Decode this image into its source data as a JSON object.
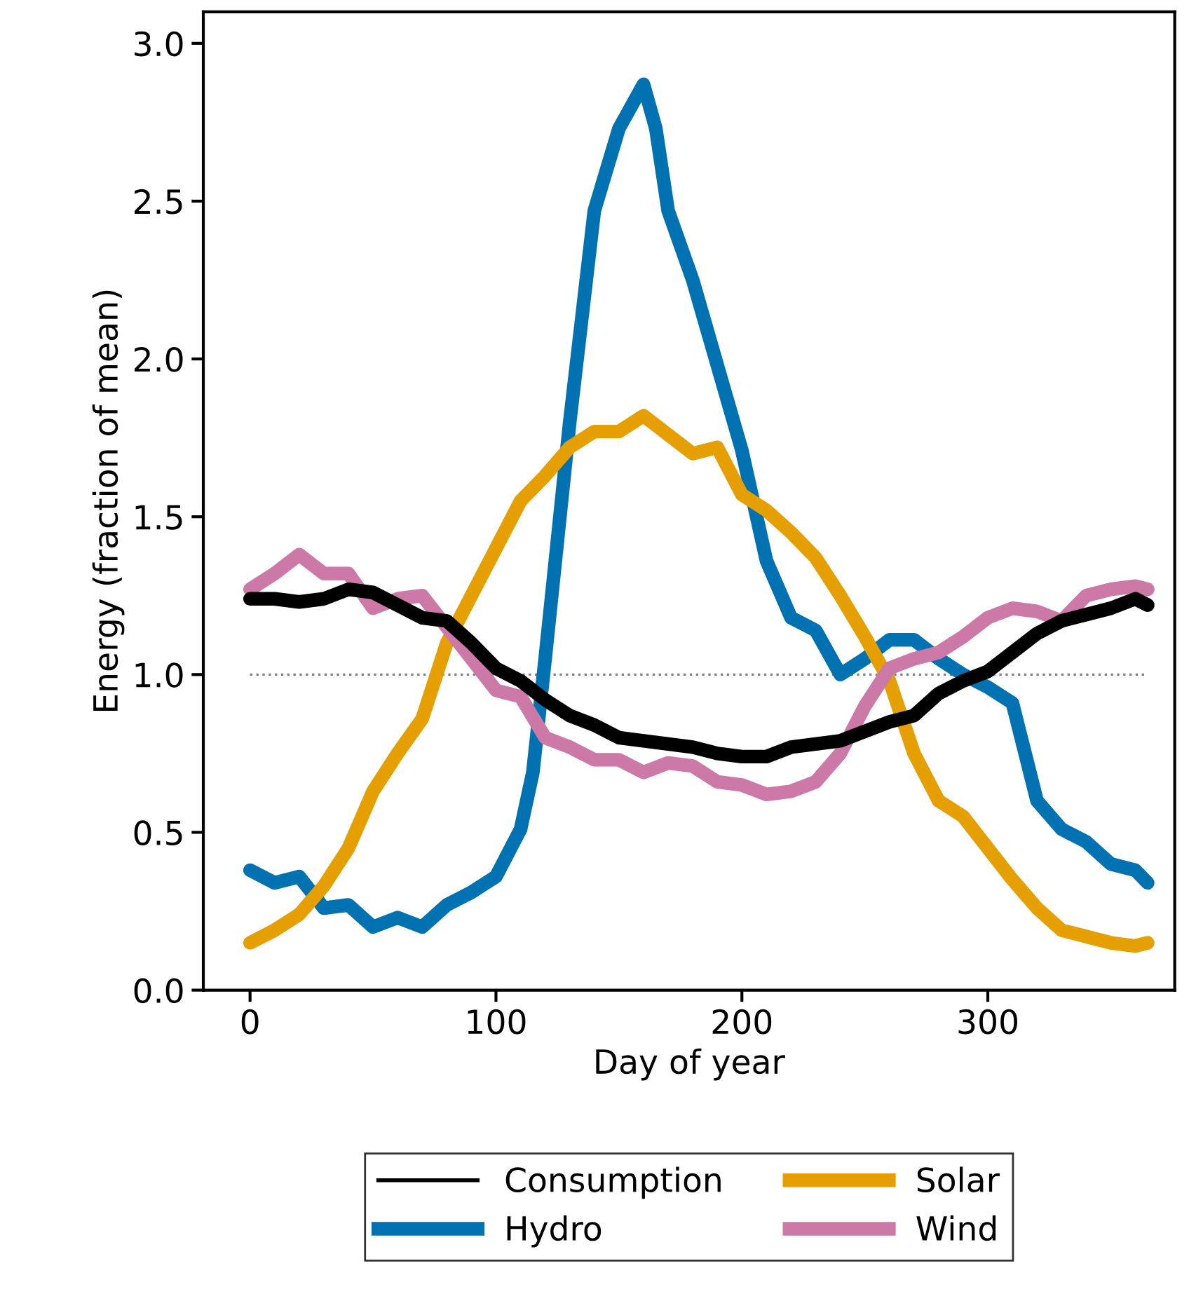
{
  "chart_data": {
    "type": "line",
    "xlabel": "Day of year",
    "ylabel": "Energy (fraction of mean)",
    "x": [
      0,
      10,
      20,
      30,
      40,
      50,
      60,
      70,
      80,
      90,
      100,
      110,
      120,
      130,
      140,
      150,
      160,
      170,
      180,
      190,
      200,
      210,
      220,
      230,
      240,
      250,
      260,
      270,
      280,
      290,
      300,
      310,
      320,
      330,
      340,
      350,
      360,
      365
    ],
    "series": [
      {
        "name": "Consumption",
        "color": "#000000",
        "values": [
          1.24,
          1.24,
          1.23,
          1.24,
          1.27,
          1.26,
          1.22,
          1.18,
          1.17,
          1.1,
          1.02,
          0.98,
          0.92,
          0.87,
          0.84,
          0.8,
          0.79,
          0.78,
          0.77,
          0.75,
          0.74,
          0.74,
          0.77,
          0.78,
          0.79,
          0.82,
          0.85,
          0.87,
          0.94,
          0.98,
          1.01,
          1.07,
          1.13,
          1.17,
          1.19,
          1.21,
          1.24,
          1.22
        ]
      },
      {
        "name": "Hydro",
        "color": "#0072b2",
        "x": [
          0,
          10,
          20,
          30,
          40,
          50,
          60,
          70,
          80,
          90,
          100,
          110,
          115,
          120,
          130,
          140,
          150,
          160,
          165,
          170,
          180,
          190,
          200,
          210,
          220,
          230,
          240,
          250,
          260,
          270,
          280,
          290,
          300,
          310,
          320,
          330,
          340,
          350,
          360,
          365
        ],
        "values": [
          0.38,
          0.34,
          0.36,
          0.26,
          0.27,
          0.2,
          0.23,
          0.2,
          0.27,
          0.31,
          0.36,
          0.51,
          0.69,
          1.05,
          1.8,
          2.47,
          2.73,
          2.87,
          2.73,
          2.47,
          2.25,
          1.98,
          1.71,
          1.36,
          1.18,
          1.14,
          1.0,
          1.05,
          1.11,
          1.11,
          1.05,
          1.0,
          0.96,
          0.91,
          0.6,
          0.51,
          0.47,
          0.4,
          0.38,
          0.34
        ]
      },
      {
        "name": "Solar",
        "color": "#e69f00",
        "values": [
          0.15,
          0.19,
          0.24,
          0.33,
          0.45,
          0.63,
          0.75,
          0.86,
          1.1,
          1.25,
          1.4,
          1.55,
          1.63,
          1.72,
          1.77,
          1.77,
          1.82,
          1.76,
          1.7,
          1.72,
          1.57,
          1.52,
          1.45,
          1.37,
          1.25,
          1.12,
          0.98,
          0.75,
          0.6,
          0.55,
          0.45,
          0.35,
          0.26,
          0.19,
          0.17,
          0.15,
          0.14,
          0.15
        ]
      },
      {
        "name": "Wind",
        "color": "#cc79a7",
        "values": [
          1.27,
          1.32,
          1.38,
          1.32,
          1.32,
          1.21,
          1.24,
          1.25,
          1.15,
          1.05,
          0.95,
          0.93,
          0.8,
          0.77,
          0.73,
          0.73,
          0.69,
          0.72,
          0.71,
          0.66,
          0.65,
          0.62,
          0.63,
          0.66,
          0.75,
          0.9,
          1.02,
          1.05,
          1.07,
          1.12,
          1.18,
          1.21,
          1.2,
          1.17,
          1.25,
          1.27,
          1.28,
          1.27
        ]
      }
    ],
    "xlim": [
      -19,
      376
    ],
    "ylim": [
      0,
      3.1
    ],
    "xticks": [
      0,
      100,
      200,
      300
    ],
    "yticks": [
      {
        "value": 0,
        "label": "0.0"
      },
      {
        "value": 0.5,
        "label": "0.5"
      },
      {
        "value": 1,
        "label": "1.0"
      },
      {
        "value": 1.5,
        "label": "1.5"
      },
      {
        "value": 2,
        "label": "2.0"
      },
      {
        "value": 2.5,
        "label": "2.5"
      },
      {
        "value": 3,
        "label": "3.0"
      }
    ],
    "ref_lines": [
      {
        "axis": "y",
        "value": 1,
        "color": "#808080",
        "line_style": "dotted"
      }
    ],
    "legend": "bottom",
    "grid": false,
    "marker": "none",
    "line_style": "solid"
  }
}
